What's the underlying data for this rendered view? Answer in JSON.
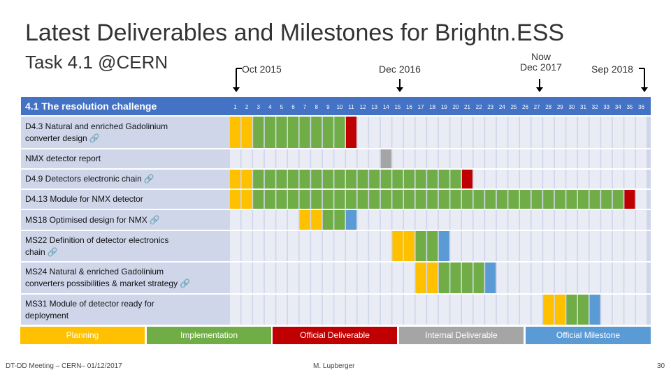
{
  "title": "Latest Deliverables and Milestones for Brightn.ESS",
  "subtitle": "Task 4.1 @CERN",
  "markers": [
    {
      "id": "oct2015",
      "line1": "",
      "line2": "Oct 2015"
    },
    {
      "id": "dec2016",
      "line1": "",
      "line2": "Dec 2016"
    },
    {
      "id": "dec2017",
      "line1": "Now",
      "line2": "Dec 2017"
    },
    {
      "id": "sep2018",
      "line1": "",
      "line2": "Sep 2018"
    }
  ],
  "chart_data": {
    "type": "table",
    "title": "4.1 The resolution challenge",
    "months": [
      1,
      2,
      3,
      4,
      5,
      6,
      7,
      8,
      9,
      10,
      11,
      12,
      13,
      14,
      15,
      16,
      17,
      18,
      19,
      20,
      21,
      22,
      23,
      24,
      25,
      26,
      27,
      28,
      29,
      30,
      31,
      32,
      33,
      34,
      35,
      36
    ],
    "tasks": [
      {
        "name": "D4.3 Natural and enriched Gadolinium converter design",
        "lines": [
          "D4.3 Natural and enriched Gadolinium",
          "converter design"
        ],
        "link": true,
        "cells": {
          "planning": [
            1,
            2
          ],
          "implementation": [
            3,
            4,
            5,
            6,
            7,
            8,
            9,
            10
          ],
          "official_deliverable": [
            11
          ]
        }
      },
      {
        "name": "NMX detector report",
        "lines": [
          "NMX detector report"
        ],
        "link": false,
        "cells": {
          "internal_deliverable": [
            14
          ]
        }
      },
      {
        "name": "D4.9 Detectors electronic chain",
        "lines": [
          "D4.9 Detectors electronic chain"
        ],
        "link": true,
        "cells": {
          "planning": [
            1,
            2
          ],
          "implementation": [
            3,
            4,
            5,
            6,
            7,
            8,
            9,
            10,
            11,
            12,
            13,
            14,
            15,
            16,
            17,
            18,
            19,
            20
          ],
          "official_deliverable": [
            21
          ]
        }
      },
      {
        "name": "D4.13 Module for NMX detector",
        "lines": [
          "D4.13 Module for NMX detector"
        ],
        "link": false,
        "cells": {
          "planning": [
            1,
            2
          ],
          "implementation": [
            3,
            4,
            5,
            6,
            7,
            8,
            9,
            10,
            11,
            12,
            13,
            14,
            15,
            16,
            17,
            18,
            19,
            20,
            21,
            22,
            23,
            24,
            25,
            26,
            27,
            28,
            29,
            30,
            31,
            32,
            33,
            34
          ],
          "official_deliverable": [
            35
          ]
        }
      },
      {
        "name": "MS18 Optimised design for NMX",
        "lines": [
          "MS18 Optimised design for NMX"
        ],
        "link": true,
        "cells": {
          "planning": [
            7,
            8
          ],
          "implementation": [
            9,
            10
          ],
          "official_milestone": [
            11
          ]
        }
      },
      {
        "name": "MS22 Definition of detector electronics chain",
        "lines": [
          "MS22 Definition of detector electronics",
          "chain"
        ],
        "link": true,
        "cells": {
          "planning": [
            15,
            16
          ],
          "implementation": [
            17,
            18
          ],
          "official_milestone": [
            19
          ]
        }
      },
      {
        "name": "MS24 Natural & enriched Gadolinium converters possibilities & market strategy",
        "lines": [
          "MS24 Natural & enriched Gadolinium",
          "converters possibilities & market strategy"
        ],
        "link": true,
        "cells": {
          "planning": [
            17,
            18
          ],
          "implementation": [
            19,
            20,
            21,
            22
          ],
          "official_milestone": [
            23
          ]
        }
      },
      {
        "name": "MS31 Module of detector ready for deployment",
        "lines": [
          "MS31 Module of detector ready for",
          "deployment"
        ],
        "link": false,
        "cells": {
          "planning": [
            28,
            29
          ],
          "implementation": [
            30,
            31
          ],
          "official_milestone": [
            32
          ]
        }
      }
    ]
  },
  "legend": [
    {
      "key": "planning",
      "label": "Planning",
      "color": "#ffc000"
    },
    {
      "key": "implementation",
      "label": "Implementation",
      "color": "#70ad47"
    },
    {
      "key": "official_deliverable",
      "label": "Official Deliverable",
      "color": "#c00000"
    },
    {
      "key": "internal_deliverable",
      "label": "Internal Deliverable",
      "color": "#a5a5a5"
    },
    {
      "key": "official_milestone",
      "label": "Official Milestone",
      "color": "#5b9bd5"
    }
  ],
  "colors": {
    "header": "#4472c4",
    "row_band": "#cfd6ea",
    "cell_empty": "#e9ecf5",
    "implementation": "#70ad47",
    "planning": "#ffc000",
    "official_deliverable": "#c00000",
    "internal_deliverable": "#a5a5a5",
    "official_milestone": "#5b9bd5"
  },
  "footer": {
    "left": "DT-DD Meeting – CERN– 01/12/2017",
    "center": "M. Lupberger",
    "page": "30"
  },
  "icons": {
    "link": "link-icon",
    "arrow": "arrow-down-icon"
  }
}
